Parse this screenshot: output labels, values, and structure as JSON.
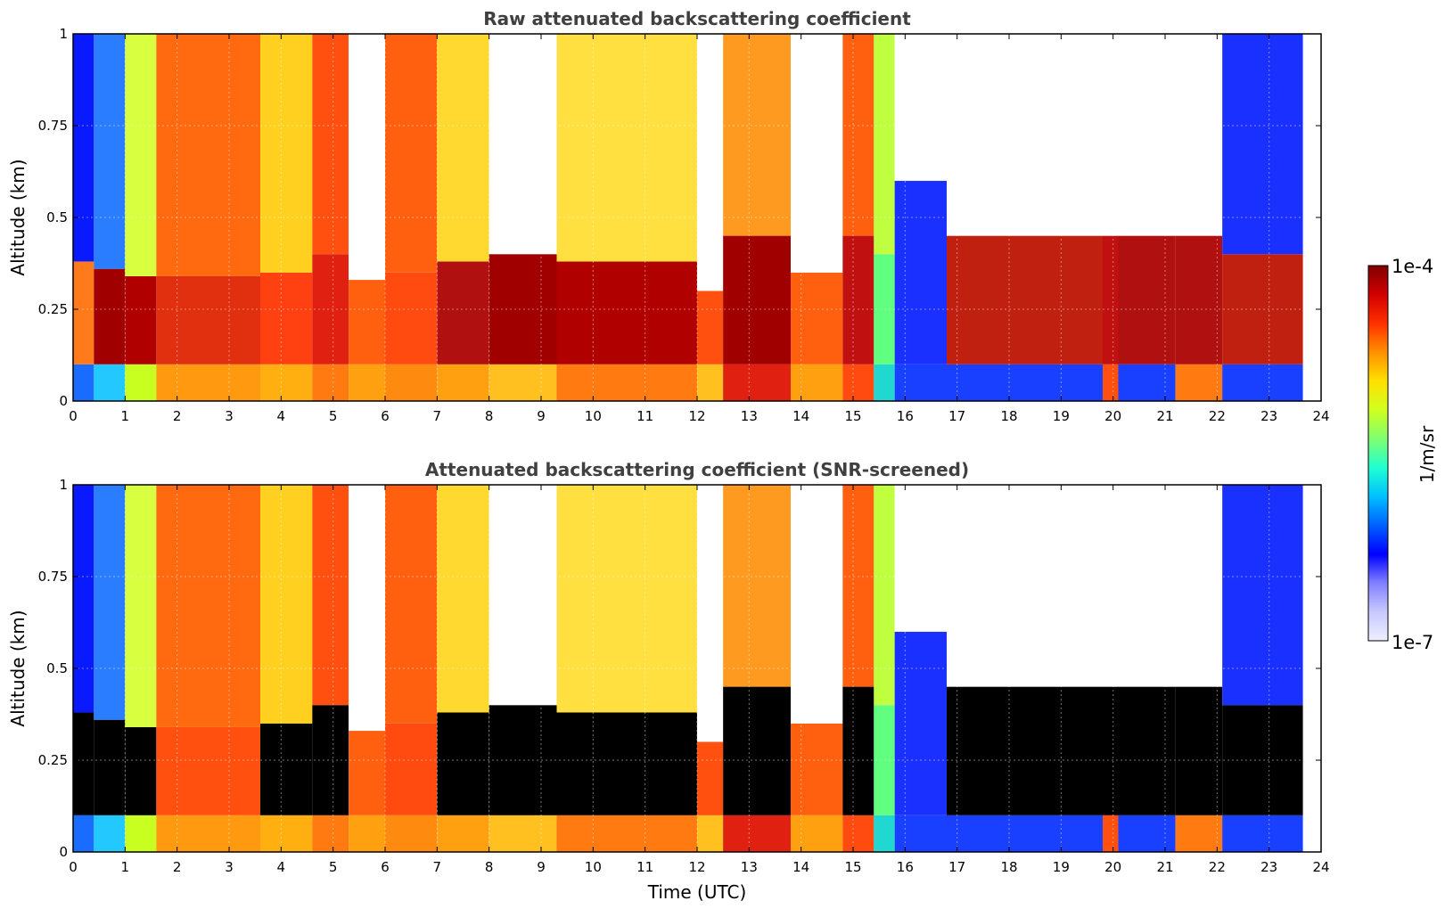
{
  "chart_data": [
    {
      "type": "heatmap",
      "title": "Raw attenuated backscattering coefficient",
      "xlabel": "",
      "ylabel": "Altitude (km)",
      "xlim": [
        0,
        24
      ],
      "ylim": [
        0,
        1
      ],
      "x_ticks": [
        "0",
        "1",
        "2",
        "3",
        "4",
        "5",
        "6",
        "7",
        "8",
        "9",
        "10",
        "11",
        "12",
        "13",
        "14",
        "15",
        "16",
        "17",
        "18",
        "19",
        "20",
        "21",
        "22",
        "23",
        "24"
      ],
      "y_ticks": [
        "0",
        "0.25",
        "0.5",
        "0.75",
        "1"
      ],
      "grid": true,
      "colormap": "jet",
      "color_scale": "log",
      "color_range": [
        "1e-7",
        "1e-4"
      ],
      "data_end_time": 23.65,
      "segments": [
        {
          "t0": 0.0,
          "t1": 0.4,
          "surface": "#1a6cff",
          "layer_top": 0.38,
          "layer": "#ff7a1a",
          "upper": "#0a1aff"
        },
        {
          "t0": 0.4,
          "t1": 1.0,
          "surface": "#22c8ff",
          "layer_top": 0.36,
          "layer": "#a00000",
          "upper": "#2a7dff"
        },
        {
          "t0": 1.0,
          "t1": 1.6,
          "surface": "#c8ff20",
          "layer_top": 0.34,
          "layer": "#b00000",
          "upper": "#d8ff40"
        },
        {
          "t0": 1.6,
          "t1": 3.6,
          "surface": "#ff9a10",
          "layer_top": 0.34,
          "layer": "#e03010",
          "upper": "#ff6a10"
        },
        {
          "t0": 3.6,
          "t1": 4.6,
          "surface": "#ffb010",
          "layer_top": 0.35,
          "layer": "#ff4010",
          "upper": "#ffd020"
        },
        {
          "t0": 4.6,
          "t1": 5.3,
          "surface": "#ff7a10",
          "layer_top": 0.4,
          "layer": "#e02010",
          "upper": "#ff5010"
        },
        {
          "t0": 5.3,
          "t1": 6.0,
          "surface": "#ffa010",
          "layer_top": 0.33,
          "layer": "#ff6010",
          "upper": "#ffffff"
        },
        {
          "t0": 6.0,
          "t1": 7.0,
          "surface": "#ff8a10",
          "layer_top": 0.35,
          "layer": "#ff4a10",
          "upper": "#ff6010"
        },
        {
          "t0": 7.0,
          "t1": 8.0,
          "surface": "#ffa010",
          "layer_top": 0.38,
          "layer": "#b01010",
          "upper": "#ffd830"
        },
        {
          "t0": 8.0,
          "t1": 9.3,
          "surface": "#ffc020",
          "layer_top": 0.4,
          "layer": "#a00000",
          "upper": "#ffffff"
        },
        {
          "t0": 9.3,
          "t1": 12.0,
          "surface": "#ff7a10",
          "layer_top": 0.38,
          "layer": "#b00000",
          "upper": "#ffe040"
        },
        {
          "t0": 12.0,
          "t1": 12.5,
          "surface": "#ffc020",
          "layer_top": 0.3,
          "layer": "#ff5010",
          "upper": "#ffffff"
        },
        {
          "t0": 12.5,
          "t1": 13.8,
          "surface": "#e02010",
          "layer_top": 0.45,
          "layer": "#a00000",
          "upper": "#ff9a20"
        },
        {
          "t0": 13.8,
          "t1": 14.8,
          "surface": "#ffa010",
          "layer_top": 0.35,
          "layer": "#ff6010",
          "upper": "#ffffff"
        },
        {
          "t0": 14.8,
          "t1": 15.4,
          "surface": "#ff4a10",
          "layer_top": 0.45,
          "layer": "#c01010",
          "upper": "#ff6010"
        },
        {
          "t0": 15.4,
          "t1": 15.8,
          "surface": "#20d8d0",
          "layer_top": 0.4,
          "layer": "#60ff80",
          "upper": "#c0ff40"
        },
        {
          "t0": 15.8,
          "t1": 16.8,
          "surface": "#1a40ff",
          "layer_top": 0.6,
          "layer": "#1a30ff",
          "upper": "#ffffff"
        },
        {
          "t0": 16.8,
          "t1": 19.8,
          "surface": "#1a40ff",
          "layer_top": 0.45,
          "layer": "#c02010",
          "upper": "#ffffff"
        },
        {
          "t0": 19.8,
          "t1": 20.1,
          "surface": "#ff5010",
          "layer_top": 0.45,
          "layer": "#c01010",
          "upper": "#ffffff"
        },
        {
          "t0": 20.1,
          "t1": 21.2,
          "surface": "#1a40ff",
          "layer_top": 0.45,
          "layer": "#b01010",
          "upper": "#ffffff"
        },
        {
          "t0": 21.2,
          "t1": 22.1,
          "surface": "#ff7a10",
          "layer_top": 0.45,
          "layer": "#b01010",
          "upper": "#ffffff"
        },
        {
          "t0": 22.1,
          "t1": 23.65,
          "surface": "#1a40ff",
          "layer_top": 0.4,
          "layer": "#c02010",
          "upper": "#1a30ff"
        }
      ]
    },
    {
      "type": "heatmap",
      "title": "Attenuated backscattering coefficient (SNR-screened)",
      "xlabel": "Time (UTC)",
      "ylabel": "Altitude (km)",
      "xlim": [
        0,
        24
      ],
      "ylim": [
        0,
        1
      ],
      "x_ticks": [
        "0",
        "1",
        "2",
        "3",
        "4",
        "5",
        "6",
        "7",
        "8",
        "9",
        "10",
        "11",
        "12",
        "13",
        "14",
        "15",
        "16",
        "17",
        "18",
        "19",
        "20",
        "21",
        "22",
        "23",
        "24"
      ],
      "y_ticks": [
        "0",
        "0.25",
        "0.5",
        "0.75",
        "1"
      ],
      "grid": true,
      "colormap": "jet",
      "color_scale": "log",
      "color_range": [
        "1e-7",
        "1e-4"
      ],
      "screened_color": "#000000",
      "data_end_time": 23.65,
      "segments": [
        {
          "t0": 0.0,
          "t1": 0.4,
          "surface": "#1a6cff",
          "layer_top": 0.38,
          "layer": "#000000",
          "upper": "#0a1aff"
        },
        {
          "t0": 0.4,
          "t1": 1.0,
          "surface": "#22c8ff",
          "layer_top": 0.36,
          "layer": "#000000",
          "upper": "#2a7dff"
        },
        {
          "t0": 1.0,
          "t1": 1.6,
          "surface": "#c8ff20",
          "layer_top": 0.34,
          "layer": "#000000",
          "upper": "#d8ff40"
        },
        {
          "t0": 1.6,
          "t1": 3.6,
          "surface": "#ff9a10",
          "layer_top": 0.34,
          "layer": "#ff5010",
          "upper": "#ff6a10"
        },
        {
          "t0": 3.6,
          "t1": 4.6,
          "surface": "#ffb010",
          "layer_top": 0.35,
          "layer": "#000000",
          "upper": "#ffd020"
        },
        {
          "t0": 4.6,
          "t1": 5.3,
          "surface": "#ff7a10",
          "layer_top": 0.4,
          "layer": "#000000",
          "upper": "#ff5010"
        },
        {
          "t0": 5.3,
          "t1": 6.0,
          "surface": "#ffa010",
          "layer_top": 0.33,
          "layer": "#ff6010",
          "upper": "#ffffff"
        },
        {
          "t0": 6.0,
          "t1": 7.0,
          "surface": "#ff8a10",
          "layer_top": 0.35,
          "layer": "#ff4a10",
          "upper": "#ff6010"
        },
        {
          "t0": 7.0,
          "t1": 8.0,
          "surface": "#ffa010",
          "layer_top": 0.38,
          "layer": "#000000",
          "upper": "#ffd830"
        },
        {
          "t0": 8.0,
          "t1": 9.3,
          "surface": "#ffc020",
          "layer_top": 0.4,
          "layer": "#000000",
          "upper": "#ffffff"
        },
        {
          "t0": 9.3,
          "t1": 12.0,
          "surface": "#ff7a10",
          "layer_top": 0.38,
          "layer": "#000000",
          "upper": "#ffe040"
        },
        {
          "t0": 12.0,
          "t1": 12.5,
          "surface": "#ffc020",
          "layer_top": 0.3,
          "layer": "#ff5010",
          "upper": "#ffffff"
        },
        {
          "t0": 12.5,
          "t1": 13.8,
          "surface": "#e02010",
          "layer_top": 0.45,
          "layer": "#000000",
          "upper": "#ff9a20"
        },
        {
          "t0": 13.8,
          "t1": 14.8,
          "surface": "#ffa010",
          "layer_top": 0.35,
          "layer": "#ff6010",
          "upper": "#ffffff"
        },
        {
          "t0": 14.8,
          "t1": 15.4,
          "surface": "#ff4a10",
          "layer_top": 0.45,
          "layer": "#000000",
          "upper": "#ff6010"
        },
        {
          "t0": 15.4,
          "t1": 15.8,
          "surface": "#20d8d0",
          "layer_top": 0.4,
          "layer": "#60ff80",
          "upper": "#c0ff40"
        },
        {
          "t0": 15.8,
          "t1": 16.8,
          "surface": "#1a40ff",
          "layer_top": 0.6,
          "layer": "#1a30ff",
          "upper": "#ffffff"
        },
        {
          "t0": 16.8,
          "t1": 19.8,
          "surface": "#1a40ff",
          "layer_top": 0.45,
          "layer": "#000000",
          "upper": "#ffffff"
        },
        {
          "t0": 19.8,
          "t1": 20.1,
          "surface": "#ff5010",
          "layer_top": 0.45,
          "layer": "#000000",
          "upper": "#ffffff"
        },
        {
          "t0": 20.1,
          "t1": 21.2,
          "surface": "#1a40ff",
          "layer_top": 0.45,
          "layer": "#000000",
          "upper": "#ffffff"
        },
        {
          "t0": 21.2,
          "t1": 22.1,
          "surface": "#ff7a10",
          "layer_top": 0.45,
          "layer": "#000000",
          "upper": "#ffffff"
        },
        {
          "t0": 22.1,
          "t1": 23.65,
          "surface": "#1a40ff",
          "layer_top": 0.4,
          "layer": "#000000",
          "upper": "#1a30ff"
        }
      ]
    }
  ],
  "colorbar": {
    "label": "1/m/sr",
    "max_label": "1e-4",
    "min_label": "1e-7",
    "colors": [
      "#eeeeff",
      "#c8c8ff",
      "#8080ff",
      "#0000ff",
      "#0060ff",
      "#00c0ff",
      "#20ffd0",
      "#80ff70",
      "#d0ff20",
      "#ffe000",
      "#ff9000",
      "#ff3000",
      "#d00000",
      "#800000"
    ]
  }
}
